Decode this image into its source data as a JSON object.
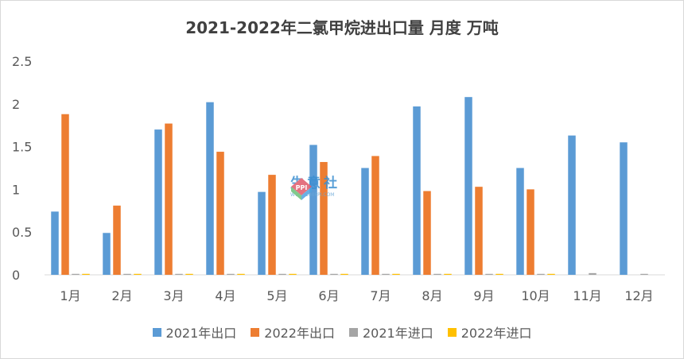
{
  "chart_data": {
    "type": "bar",
    "title": "2021-2022年二氯甲烷进出口量 月度 万吨",
    "categories": [
      "1月",
      "2月",
      "3月",
      "4月",
      "5月",
      "6月",
      "7月",
      "8月",
      "9月",
      "10月",
      "11月",
      "12月"
    ],
    "series": [
      {
        "name": "2021年出口",
        "color": "#5B9BD5",
        "values": [
          0.74,
          0.49,
          1.7,
          2.02,
          0.97,
          1.52,
          1.25,
          1.97,
          2.08,
          1.25,
          1.63,
          1.55
        ]
      },
      {
        "name": "2022年出口",
        "color": "#ED7D31",
        "values": [
          1.88,
          0.81,
          1.77,
          1.44,
          1.17,
          1.32,
          1.39,
          0.98,
          1.03,
          1.0,
          null,
          null
        ]
      },
      {
        "name": "2021年进口",
        "color": "#A5A5A5",
        "values": [
          0.01,
          0.01,
          0.01,
          0.01,
          0.01,
          0.01,
          0.01,
          0.01,
          0.01,
          0.01,
          0.02,
          0.01
        ]
      },
      {
        "name": "2022年进口",
        "color": "#FFC000",
        "values": [
          0.01,
          0.01,
          0.01,
          0.01,
          0.01,
          0.01,
          0.01,
          0.01,
          0.01,
          0.01,
          null,
          null
        ]
      }
    ],
    "ylim": [
      0,
      2.5
    ],
    "yticks": [
      "0",
      "0.5",
      "1",
      "1.5",
      "2",
      "2.5"
    ],
    "ytick_values": [
      0,
      0.5,
      1,
      1.5,
      2,
      2.5
    ],
    "grid": false,
    "legend_position": "bottom"
  },
  "watermark": {
    "main": "生意社",
    "sub": "WWW.100PPI.COM",
    "logo_text": "PPI"
  }
}
